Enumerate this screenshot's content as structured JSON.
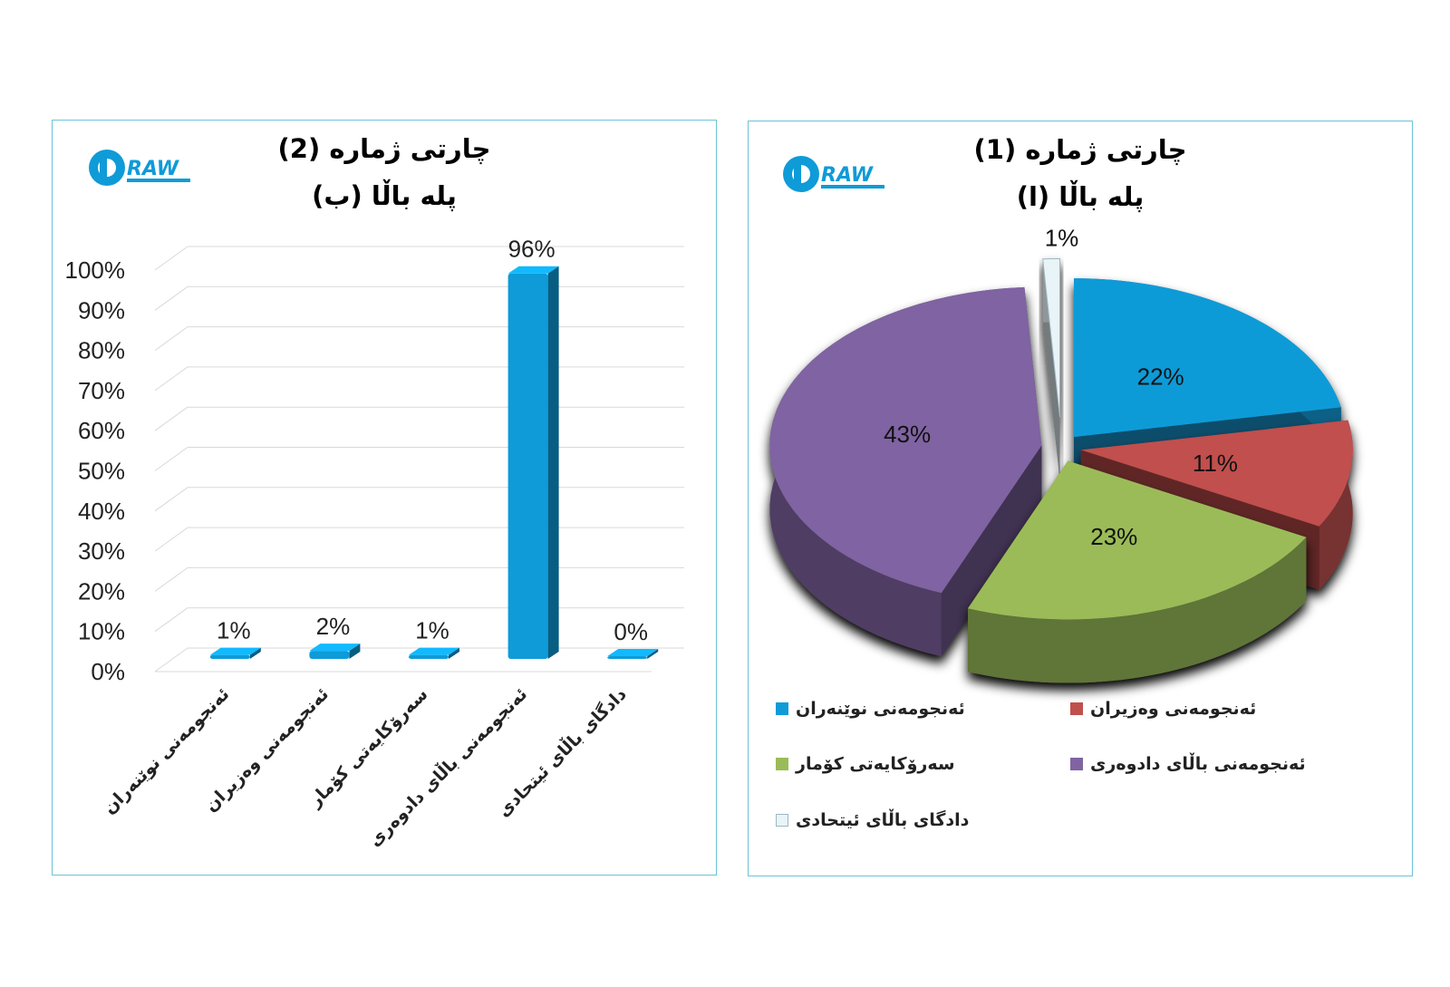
{
  "colors": {
    "border": "#6cc3d8",
    "blue": "#0e9bd8",
    "red": "#c0504d",
    "green": "#9bbb59",
    "purple": "#8064a2",
    "light": "#e8f4f8"
  },
  "logo": {
    "text": "RAW",
    "icon": "draw-logo-icon"
  },
  "bar_panel": {
    "title_line1": "چارتی ژمارە (2)",
    "title_line2": "پلە باڵا (ب)"
  },
  "pie_panel": {
    "title_line1": "چارتی ژمارە (1)",
    "title_line2": "پلە باڵا (ا)"
  },
  "chart_data": [
    {
      "type": "bar",
      "title": "چارتی ژمارە (2) پلە باڵا (ب)",
      "categories": [
        "ئەنجومەنی نوێنەران",
        "ئەنجومەنی وەزیران",
        "سەرۆکایەتی کۆمار",
        "ئەنجومەنی باڵای دادوەری",
        "دادگای باڵای ئیتحادی"
      ],
      "values": [
        1,
        2,
        1,
        96,
        0
      ],
      "data_labels": [
        "1%",
        "2%",
        "1%",
        "96%",
        "0%"
      ],
      "ylim": [
        0,
        100
      ],
      "yticks": [
        "0%",
        "10%",
        "20%",
        "30%",
        "40%",
        "50%",
        "60%",
        "70%",
        "80%",
        "90%",
        "100%"
      ],
      "grid": true,
      "color": "#0e9bd8"
    },
    {
      "type": "pie",
      "title": "چارتی ژمارە (1) پلە باڵا (ا)",
      "categories": [
        "ئەنجومەنی نوێنەران",
        "ئەنجومەنی وەزیران",
        "سەرۆکایەتی کۆمار",
        "ئەنجومەنی باڵای دادوەری",
        "دادگای باڵای ئیتحادی"
      ],
      "values": [
        22,
        11,
        23,
        43,
        1
      ],
      "data_labels": [
        "22%",
        "11%",
        "23%",
        "43%",
        "1%"
      ],
      "colors": [
        "#0e9bd8",
        "#c0504d",
        "#9bbb59",
        "#8064a2",
        "#e8f4f8"
      ],
      "legend": "bottom"
    }
  ]
}
